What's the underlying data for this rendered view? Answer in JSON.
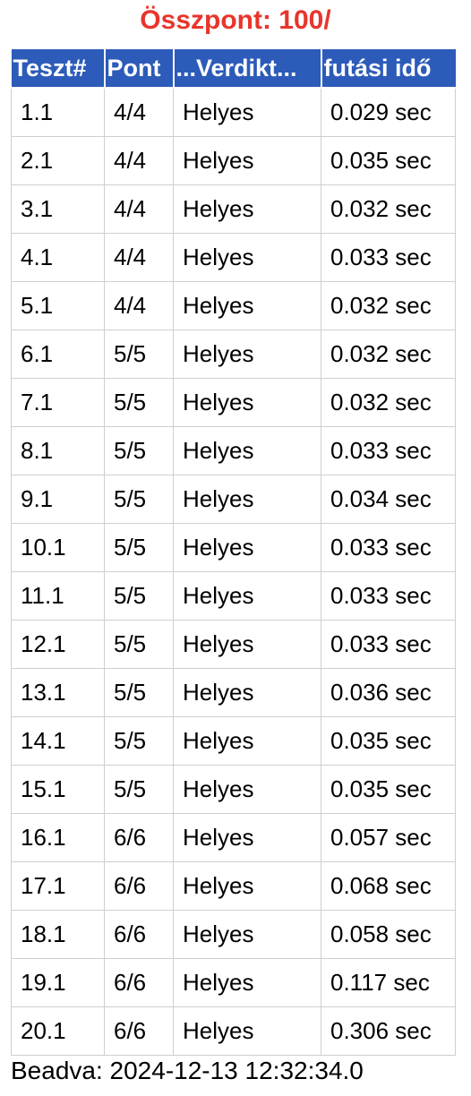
{
  "header": {
    "total_label": "Összpont: 100/"
  },
  "table": {
    "columns": [
      "Teszt#",
      "Pont",
      "...Verdikt...",
      "futási idő"
    ],
    "rows": [
      [
        "1.1",
        "4/4",
        "Helyes",
        "0.029 sec"
      ],
      [
        "2.1",
        "4/4",
        "Helyes",
        "0.035 sec"
      ],
      [
        "3.1",
        "4/4",
        "Helyes",
        "0.032 sec"
      ],
      [
        "4.1",
        "4/4",
        "Helyes",
        "0.033 sec"
      ],
      [
        "5.1",
        "4/4",
        "Helyes",
        "0.032 sec"
      ],
      [
        "6.1",
        "5/5",
        "Helyes",
        "0.032 sec"
      ],
      [
        "7.1",
        "5/5",
        "Helyes",
        "0.032 sec"
      ],
      [
        "8.1",
        "5/5",
        "Helyes",
        "0.033 sec"
      ],
      [
        "9.1",
        "5/5",
        "Helyes",
        "0.034 sec"
      ],
      [
        "10.1",
        "5/5",
        "Helyes",
        "0.033 sec"
      ],
      [
        "11.1",
        "5/5",
        "Helyes",
        "0.033 sec"
      ],
      [
        "12.1",
        "5/5",
        "Helyes",
        "0.033 sec"
      ],
      [
        "13.1",
        "5/5",
        "Helyes",
        "0.036 sec"
      ],
      [
        "14.1",
        "5/5",
        "Helyes",
        "0.035 sec"
      ],
      [
        "15.1",
        "5/5",
        "Helyes",
        "0.035 sec"
      ],
      [
        "16.1",
        "6/6",
        "Helyes",
        "0.057 sec"
      ],
      [
        "17.1",
        "6/6",
        "Helyes",
        "0.068 sec"
      ],
      [
        "18.1",
        "6/6",
        "Helyes",
        "0.058 sec"
      ],
      [
        "19.1",
        "6/6",
        "Helyes",
        "0.117 sec"
      ],
      [
        "20.1",
        "6/6",
        "Helyes",
        "0.306 sec"
      ]
    ]
  },
  "footer": {
    "submitted": "Beadva: 2024-12-13 12:32:34.0"
  },
  "colors": {
    "total_text": "#e8352b",
    "header_bg": "#2c5bb9",
    "header_text": "#ffffff",
    "cell_border": "#cfcfcf"
  }
}
